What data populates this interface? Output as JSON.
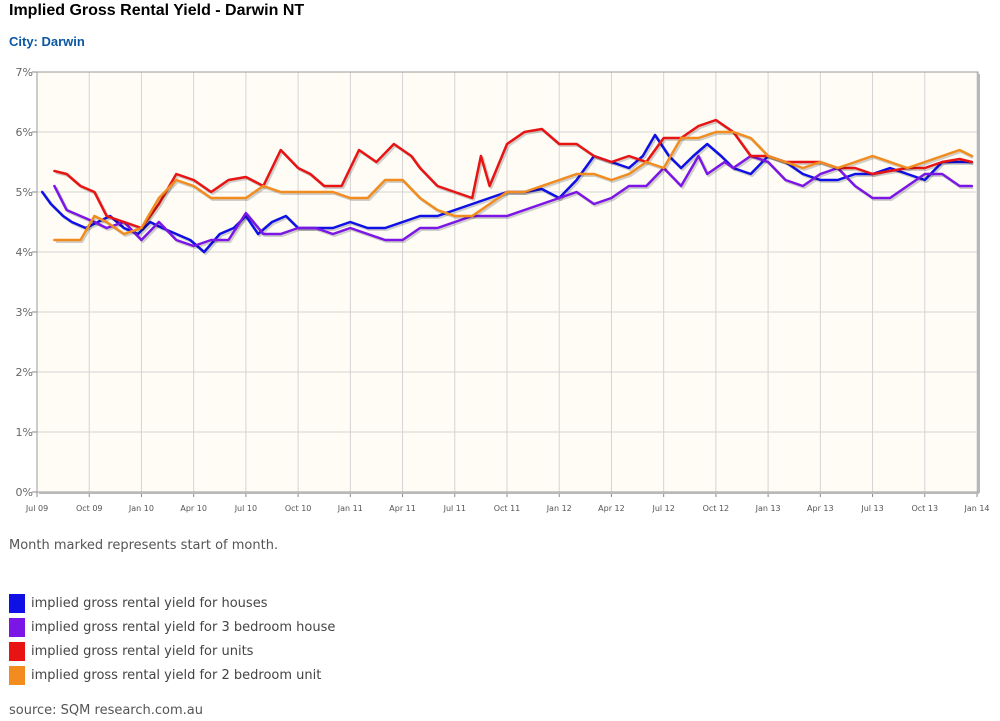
{
  "title": "Implied Gross Rental Yield - Darwin NT",
  "subtitle": "City: Darwin",
  "note": "Month marked represents start of month.",
  "source": "source: SQM research.com.au",
  "chart_data": {
    "type": "line",
    "yticks": [
      "0%",
      "1%",
      "2%",
      "3%",
      "4%",
      "5%",
      "6%",
      "7%"
    ],
    "ylim": [
      0,
      7
    ],
    "xticks": [
      "Jul 09",
      "Oct 09",
      "Jan 10",
      "Apr 10",
      "Jul 10",
      "Oct 10",
      "Jan 11",
      "Apr 11",
      "Jul 11",
      "Oct 11",
      "Jan 12",
      "Apr 12",
      "Jul 12",
      "Oct 12",
      "Jan 13",
      "Apr 13",
      "Jul 13",
      "Oct 13",
      "Jan 14"
    ],
    "x_unit": "months since Jul 09",
    "grid": true,
    "plot_background": "#fefcf5",
    "series": [
      {
        "name": "implied gross rental yield for houses",
        "color": "#0f10e6",
        "x": [
          0.3,
          0.8,
          1.5,
          2,
          2.8,
          3.5,
          4.2,
          5,
          5.8,
          6.5,
          7.2,
          8,
          8.8,
          9.6,
          10.5,
          11.3,
          12,
          12.7,
          13.5,
          14.3,
          15,
          16,
          17,
          18,
          19,
          20,
          21,
          22,
          23,
          24,
          25,
          26,
          27,
          28,
          29,
          30,
          31,
          32,
          33,
          34,
          34.8,
          35.5,
          36.3,
          37,
          37.7,
          38.5,
          39.3,
          40,
          41,
          42,
          43,
          44,
          45,
          46,
          47,
          48,
          49,
          50,
          51,
          52,
          53,
          53.7
        ],
        "y": [
          5.0,
          4.8,
          4.6,
          4.5,
          4.4,
          4.5,
          4.6,
          4.4,
          4.3,
          4.5,
          4.4,
          4.3,
          4.2,
          4.0,
          4.3,
          4.4,
          4.6,
          4.3,
          4.5,
          4.6,
          4.4,
          4.4,
          4.4,
          4.5,
          4.4,
          4.4,
          4.5,
          4.6,
          4.6,
          4.7,
          4.8,
          4.9,
          5.0,
          5.0,
          5.05,
          4.9,
          5.2,
          5.6,
          5.5,
          5.4,
          5.6,
          5.95,
          5.6,
          5.4,
          5.6,
          5.8,
          5.6,
          5.4,
          5.3,
          5.6,
          5.5,
          5.3,
          5.2,
          5.2,
          5.3,
          5.3,
          5.4,
          5.3,
          5.2,
          5.5,
          5.5,
          5.5
        ]
      },
      {
        "name": "implied gross rental yield for 3 bedroom house",
        "color": "#7b16e6",
        "x": [
          1,
          1.7,
          2.5,
          3.3,
          4,
          5,
          6,
          7,
          8,
          9,
          10,
          11,
          12,
          13,
          14,
          15,
          16,
          17,
          18,
          19,
          20,
          21,
          22,
          23,
          24,
          25,
          26,
          27,
          28,
          29,
          30,
          31,
          32,
          33,
          34,
          35,
          36,
          37,
          38,
          38.5,
          39.5,
          40,
          41,
          42,
          43,
          44,
          45,
          46,
          47,
          48,
          49,
          50,
          51,
          52,
          53,
          53.7
        ],
        "y": [
          5.1,
          4.7,
          4.6,
          4.5,
          4.4,
          4.5,
          4.2,
          4.5,
          4.2,
          4.1,
          4.2,
          4.2,
          4.65,
          4.3,
          4.3,
          4.4,
          4.4,
          4.3,
          4.4,
          4.3,
          4.2,
          4.2,
          4.4,
          4.4,
          4.5,
          4.6,
          4.6,
          4.6,
          4.7,
          4.8,
          4.9,
          5.0,
          4.8,
          4.9,
          5.1,
          5.1,
          5.4,
          5.1,
          5.6,
          5.3,
          5.5,
          5.4,
          5.6,
          5.5,
          5.2,
          5.1,
          5.3,
          5.4,
          5.1,
          4.9,
          4.9,
          5.1,
          5.3,
          5.3,
          5.1,
          5.1
        ]
      },
      {
        "name": "implied gross rental yield for units",
        "color": "#e81414",
        "x": [
          1,
          1.7,
          2.5,
          3.3,
          4,
          5,
          6,
          7,
          8,
          9,
          10,
          11,
          12,
          13,
          14,
          15,
          15.7,
          16.5,
          17.5,
          18.5,
          19.5,
          20.5,
          21.5,
          22,
          23,
          24,
          25,
          25.5,
          26,
          27,
          28,
          29,
          30,
          31,
          32,
          33,
          34,
          35,
          36,
          37,
          38,
          39,
          40,
          41,
          42,
          43,
          44,
          45,
          46,
          47,
          48,
          49,
          50,
          51,
          52,
          53,
          53.7
        ],
        "y": [
          5.35,
          5.3,
          5.1,
          5.0,
          4.6,
          4.5,
          4.4,
          4.8,
          5.3,
          5.2,
          5.0,
          5.2,
          5.25,
          5.1,
          5.7,
          5.4,
          5.3,
          5.1,
          5.1,
          5.7,
          5.5,
          5.8,
          5.6,
          5.4,
          5.1,
          5.0,
          4.9,
          5.6,
          5.1,
          5.8,
          6.0,
          6.05,
          5.8,
          5.8,
          5.6,
          5.5,
          5.6,
          5.5,
          5.9,
          5.9,
          6.1,
          6.2,
          6.0,
          5.6,
          5.6,
          5.5,
          5.5,
          5.5,
          5.4,
          5.4,
          5.3,
          5.35,
          5.4,
          5.4,
          5.5,
          5.55,
          5.5
        ]
      },
      {
        "name": "implied gross rental yield for 2 bedroom unit",
        "color": "#f28c1e",
        "x": [
          1,
          1.7,
          2.5,
          3.3,
          4,
          5,
          6,
          7,
          8,
          9,
          10,
          11,
          12,
          13,
          14,
          15,
          16,
          17,
          18,
          19,
          20,
          21,
          22,
          23,
          24,
          25,
          26,
          27,
          28,
          29,
          30,
          31,
          32,
          33,
          34,
          35,
          36,
          37,
          38,
          39,
          40,
          41,
          42,
          43,
          44,
          45,
          46,
          47,
          48,
          49,
          50,
          51,
          52,
          53,
          53.7
        ],
        "y": [
          4.2,
          4.2,
          4.2,
          4.6,
          4.5,
          4.3,
          4.4,
          4.9,
          5.2,
          5.1,
          4.9,
          4.9,
          4.9,
          5.1,
          5.0,
          5.0,
          5.0,
          5.0,
          4.9,
          4.9,
          5.2,
          5.2,
          4.9,
          4.7,
          4.6,
          4.6,
          4.8,
          5.0,
          5.0,
          5.1,
          5.2,
          5.3,
          5.3,
          5.2,
          5.3,
          5.5,
          5.4,
          5.9,
          5.9,
          6.0,
          6.0,
          5.9,
          5.6,
          5.5,
          5.4,
          5.5,
          5.4,
          5.5,
          5.6,
          5.5,
          5.4,
          5.5,
          5.6,
          5.7,
          5.6
        ]
      }
    ]
  }
}
